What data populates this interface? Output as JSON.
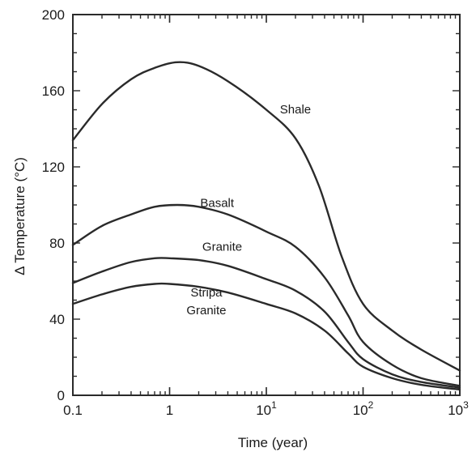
{
  "chart_data": {
    "type": "line",
    "title": "",
    "xlabel": "Time (year)",
    "ylabel": "Δ Temperature (°C)",
    "xscale": "log",
    "xlim": [
      0.1,
      1000
    ],
    "ylim": [
      0,
      200
    ],
    "grid": false,
    "legend": "none",
    "x_ticks": [
      {
        "value": 0.1,
        "label": "0.1"
      },
      {
        "value": 1,
        "label": "1"
      },
      {
        "value": 10,
        "label": "10",
        "base": "10",
        "exp": "1"
      },
      {
        "value": 100,
        "label": "10^2",
        "base": "10",
        "exp": "2"
      },
      {
        "value": 1000,
        "label": "10^3",
        "base": "10",
        "exp": "3"
      }
    ],
    "y_ticks": [
      {
        "value": 0,
        "label": "0"
      },
      {
        "value": 40,
        "label": "40"
      },
      {
        "value": 80,
        "label": "80"
      },
      {
        "value": 120,
        "label": "120"
      },
      {
        "value": 160,
        "label": "160"
      },
      {
        "value": 200,
        "label": "200"
      }
    ],
    "series": [
      {
        "name": "Shale",
        "x": [
          0.1,
          0.2,
          0.4,
          0.7,
          1.2,
          2,
          4,
          10,
          20,
          35,
          60,
          100,
          200,
          400,
          1000
        ],
        "y": [
          134,
          153,
          166,
          172,
          175,
          173,
          165,
          150,
          135,
          110,
          73,
          48,
          34,
          24,
          13
        ]
      },
      {
        "name": "Basalt",
        "x": [
          0.1,
          0.2,
          0.4,
          0.7,
          1.2,
          2,
          4,
          10,
          20,
          40,
          70,
          100,
          200,
          400,
          1000
        ],
        "y": [
          79,
          89,
          95,
          99,
          100,
          99,
          95,
          86,
          78,
          62,
          42,
          28,
          16,
          9,
          5
        ]
      },
      {
        "name": "Granite",
        "x": [
          0.1,
          0.2,
          0.4,
          0.7,
          1,
          2,
          4,
          10,
          20,
          40,
          70,
          100,
          200,
          400,
          1000
        ],
        "y": [
          59,
          65,
          70,
          72,
          72,
          71,
          68,
          61,
          55,
          44,
          28,
          19,
          11,
          7,
          4
        ]
      },
      {
        "name": "Stripa Granite",
        "x": [
          0.1,
          0.2,
          0.4,
          0.7,
          1,
          2,
          4,
          10,
          20,
          40,
          70,
          100,
          200,
          400,
          1000
        ],
        "y": [
          48,
          53,
          57,
          58.5,
          58.5,
          57,
          54,
          48,
          43,
          34,
          22,
          15,
          9,
          5.5,
          3
        ]
      }
    ],
    "annotations": [
      {
        "series": "Shale",
        "text": "Shale",
        "lines": [
          "Shale"
        ],
        "x": 20,
        "y": 148
      },
      {
        "series": "Basalt",
        "text": "Basalt",
        "lines": [
          "Basalt"
        ],
        "x": 3.1,
        "y": 99
      },
      {
        "series": "Granite",
        "text": "Granite",
        "lines": [
          "Granite"
        ],
        "x": 3.5,
        "y": 76
      },
      {
        "series": "Stripa Granite",
        "text": "Stripa Granite",
        "lines": [
          "Stripa",
          "Granite"
        ],
        "x": 2.4,
        "y": 52
      }
    ]
  }
}
